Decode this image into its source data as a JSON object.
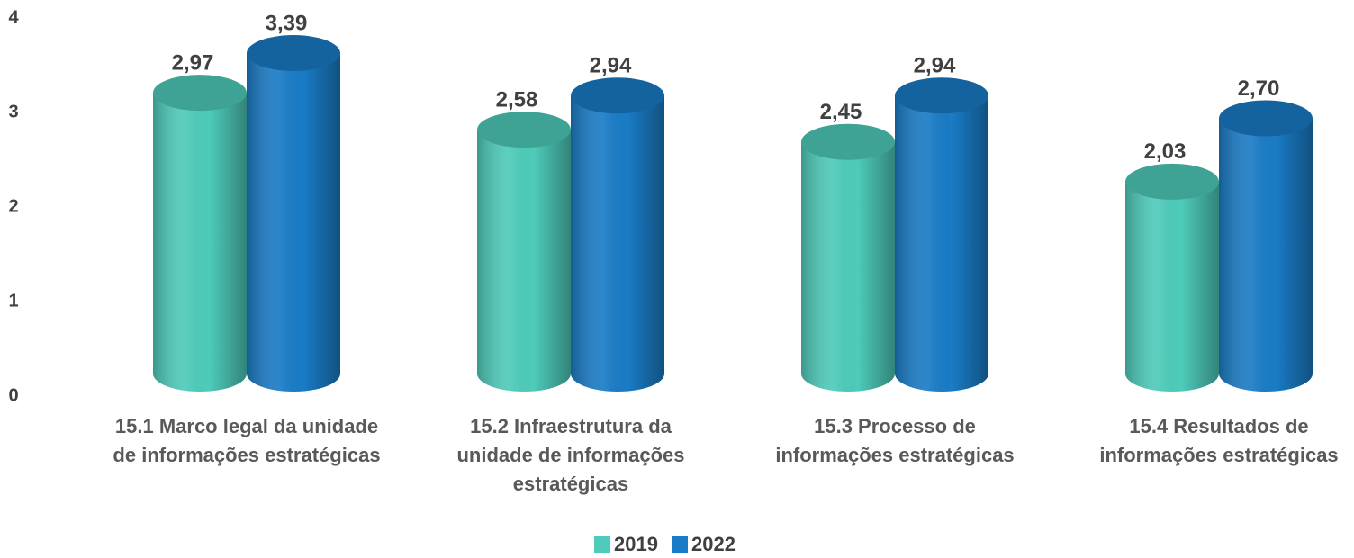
{
  "chart_data": {
    "type": "bar3d",
    "categories": [
      "15.1 Marco legal da unidade de informações estratégicas",
      "15.2 Infraestrutura da unidade de informações estratégicas",
      "15.3 Processo de informações estratégicas",
      "15.4 Resultados de informações estratégicas"
    ],
    "series": [
      {
        "name": "2019",
        "color": "#4ecbba",
        "values": [
          2.97,
          2.58,
          2.45,
          2.03
        ],
        "value_labels": [
          "2,97",
          "2,58",
          "2,45",
          "2,03"
        ]
      },
      {
        "name": "2022",
        "color": "#1a7cc6",
        "values": [
          3.39,
          2.94,
          2.94,
          2.7
        ],
        "value_labels": [
          "3,39",
          "2,94",
          "2,94",
          "2,70"
        ]
      }
    ],
    "ylim": [
      0,
      4
    ],
    "yticks": [
      0,
      1,
      2,
      3,
      4
    ],
    "grid": false,
    "legend": "bottom"
  }
}
